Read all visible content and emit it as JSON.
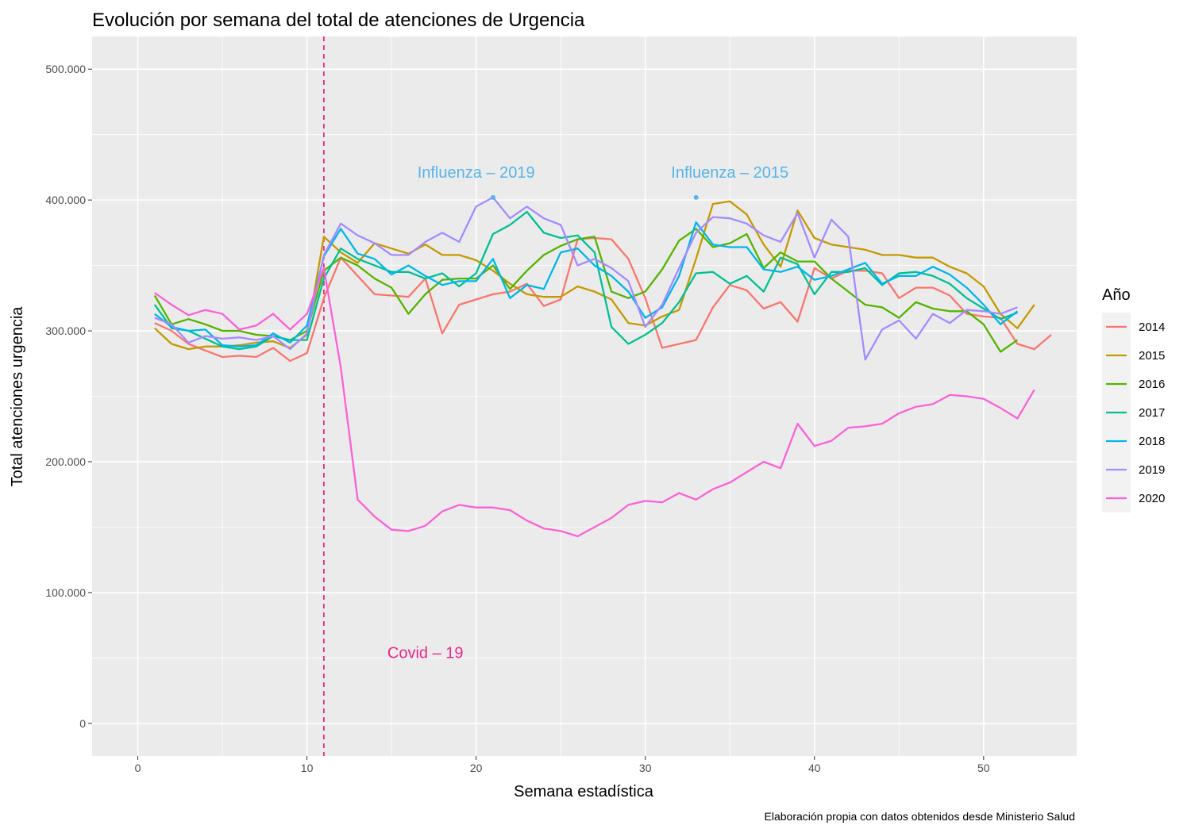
{
  "chart_data": {
    "type": "line",
    "title": "Evolución por semana del total de atenciones de Urgencia",
    "xlabel": "Semana estadística",
    "ylabel": "Total atenciones urgencia",
    "caption": "Elaboración propia con datos obtenidos desde Ministerio Salud",
    "xlim": [
      -2.7,
      55.5
    ],
    "ylim": [
      -25000,
      525000
    ],
    "x_ticks": [
      0,
      10,
      20,
      30,
      40,
      50
    ],
    "x_tick_labels": [
      "0",
      "10",
      "20",
      "30",
      "40",
      "50"
    ],
    "y_ticks": [
      0,
      100000,
      200000,
      300000,
      400000,
      500000
    ],
    "y_tick_labels": [
      "0",
      "100.000",
      "200.000",
      "300.000",
      "400.000",
      "500.000"
    ],
    "grid": true,
    "legend": {
      "title": "Año",
      "position": "right"
    },
    "series": [
      {
        "name": "2014",
        "color": "#F8766D",
        "x_start": 1,
        "values": [
          306000,
          300000,
          290000,
          285000,
          280000,
          281000,
          280000,
          287000,
          277000,
          283000,
          325000,
          356000,
          342000,
          328000,
          327000,
          326000,
          340000,
          298000,
          320000,
          324000,
          328000,
          330000,
          336000,
          319000,
          324000,
          370000,
          371000,
          370000,
          355000,
          325000,
          287000,
          290000,
          293000,
          318000,
          335000,
          331000,
          317000,
          322000,
          307000,
          348000,
          340000,
          346000,
          346000,
          344000,
          325000,
          333000,
          333000,
          327000,
          313000,
          311000,
          310000,
          290000,
          286000,
          297000
        ]
      },
      {
        "name": "2015",
        "color": "#C49A00",
        "x_start": 1,
        "values": [
          302000,
          290000,
          286000,
          288000,
          288000,
          289000,
          291000,
          292000,
          287000,
          297000,
          372000,
          360000,
          352000,
          367000,
          363000,
          359000,
          366000,
          358000,
          358000,
          354000,
          346000,
          336000,
          328000,
          326000,
          326000,
          334000,
          330000,
          324000,
          306000,
          304000,
          311000,
          316000,
          355000,
          397000,
          399000,
          389000,
          366000,
          349000,
          392000,
          371000,
          366000,
          364000,
          362000,
          358000,
          358000,
          356000,
          356000,
          349000,
          344000,
          334000,
          313000,
          302000,
          320000
        ]
      },
      {
        "name": "2016",
        "color": "#53B400",
        "x_start": 1,
        "values": [
          327000,
          305000,
          309000,
          305000,
          300000,
          300000,
          297000,
          296000,
          293000,
          300000,
          346000,
          356000,
          350000,
          340000,
          333000,
          313000,
          328000,
          339000,
          340000,
          340000,
          350000,
          332000,
          346000,
          358000,
          365000,
          370000,
          372000,
          330000,
          325000,
          330000,
          347000,
          369000,
          378000,
          364000,
          367000,
          374000,
          348000,
          360000,
          353000,
          353000,
          340000,
          330000,
          320000,
          318000,
          310000,
          322000,
          317000,
          315000,
          315000,
          305000,
          284000,
          293000
        ]
      },
      {
        "name": "2017",
        "color": "#00C094",
        "x_start": 1,
        "values": [
          320000,
          302000,
          300000,
          294000,
          288000,
          286000,
          288000,
          296000,
          293000,
          293000,
          340000,
          363000,
          355000,
          350000,
          345000,
          345000,
          340000,
          344000,
          334000,
          344000,
          374000,
          381000,
          391000,
          375000,
          371000,
          373000,
          360000,
          303000,
          290000,
          297000,
          306000,
          322000,
          344000,
          345000,
          336000,
          342000,
          330000,
          356000,
          351000,
          328000,
          345000,
          345000,
          348000,
          335000,
          344000,
          345000,
          342000,
          336000,
          325000,
          317000,
          309000,
          314000
        ]
      },
      {
        "name": "2018",
        "color": "#00B6EB",
        "x_start": 1,
        "values": [
          313000,
          303000,
          300000,
          301000,
          289000,
          288000,
          289000,
          298000,
          291000,
          304000,
          357000,
          378000,
          359000,
          355000,
          343000,
          350000,
          342000,
          335000,
          338000,
          338000,
          355000,
          325000,
          335000,
          332000,
          360000,
          363000,
          350000,
          342000,
          330000,
          310000,
          318000,
          342000,
          383000,
          366000,
          364000,
          364000,
          347000,
          345000,
          349000,
          339000,
          342000,
          347000,
          352000,
          336000,
          342000,
          342000,
          349000,
          343000,
          333000,
          320000,
          305000,
          315000
        ]
      },
      {
        "name": "2019",
        "color": "#A58AFF",
        "x_start": 1,
        "values": [
          310000,
          305000,
          291000,
          296000,
          294000,
          295000,
          293000,
          296000,
          286000,
          298000,
          358000,
          382000,
          373000,
          367000,
          358000,
          358000,
          368000,
          375000,
          368000,
          395000,
          402000,
          386000,
          395000,
          386000,
          381000,
          350000,
          355000,
          348000,
          338000,
          303000,
          320000,
          348000,
          375000,
          387000,
          386000,
          382000,
          373000,
          368000,
          390000,
          356000,
          385000,
          372000,
          278000,
          301000,
          308000,
          294000,
          313000,
          306000,
          316000,
          315000,
          313000,
          318000
        ]
      },
      {
        "name": "2020",
        "color": "#FB61D7",
        "x_start": 1,
        "values": [
          329000,
          320000,
          312000,
          316000,
          313000,
          301000,
          304000,
          313000,
          301000,
          313000,
          348000,
          272000,
          171000,
          158000,
          148000,
          147000,
          151000,
          162000,
          167000,
          165000,
          165000,
          163000,
          155000,
          149000,
          147000,
          143000,
          150000,
          157000,
          167000,
          170000,
          169000,
          176000,
          171000,
          179000,
          184000,
          192000,
          200000,
          195000,
          229000,
          212000,
          216000,
          226000,
          227000,
          229000,
          237000,
          242000,
          244000,
          251000,
          250000,
          248000,
          241000,
          233000,
          255000
        ]
      }
    ],
    "vline": {
      "x": 11,
      "color": "#E7298A"
    },
    "annotations": [
      {
        "label": "Influenza – 2019",
        "x": 20,
        "y": 417000,
        "color": "#56B4E9"
      },
      {
        "label": "Influenza – 2015",
        "x": 35,
        "y": 417000,
        "color": "#56B4E9"
      },
      {
        "label": "Covid – 19",
        "x": 17,
        "y": 50000,
        "color": "#E7298A"
      }
    ],
    "annotation_points": [
      {
        "x": 21,
        "y": 402000,
        "color": "#56B4E9"
      },
      {
        "x": 33,
        "y": 402000,
        "color": "#56B4E9"
      }
    ]
  }
}
